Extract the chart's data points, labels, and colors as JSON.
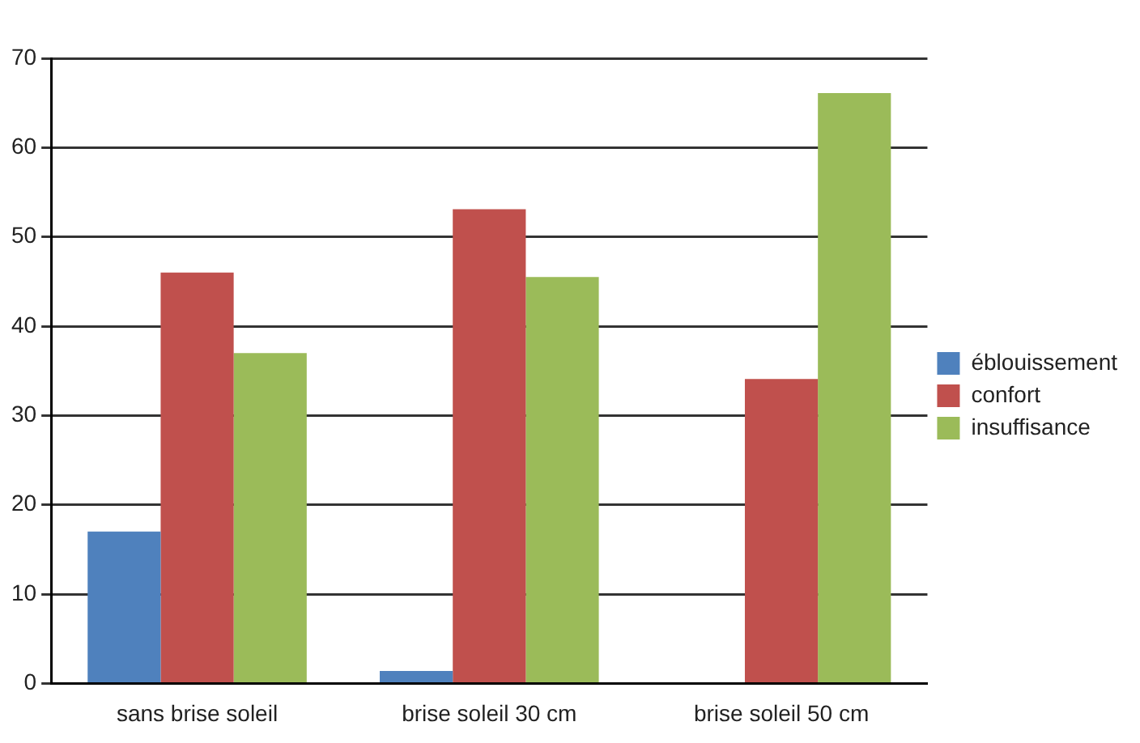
{
  "chart_data": {
    "type": "bar",
    "categories": [
      "sans brise soleil",
      "brise soleil 30 cm",
      "brise soleil 50 cm"
    ],
    "series": [
      {
        "name": "éblouissement",
        "color": "#4f81bd",
        "values": [
          17,
          1.4,
          0
        ]
      },
      {
        "name": "confort",
        "color": "#c0504d",
        "values": [
          46,
          53.1,
          34.1
        ]
      },
      {
        "name": "insuffisance",
        "color": "#9bbb59",
        "values": [
          37,
          45.5,
          66.1
        ]
      }
    ],
    "ylim": [
      0,
      70
    ],
    "yticks": [
      0,
      10,
      20,
      30,
      40,
      50,
      60,
      70
    ],
    "grid": "y",
    "legend": "right"
  }
}
